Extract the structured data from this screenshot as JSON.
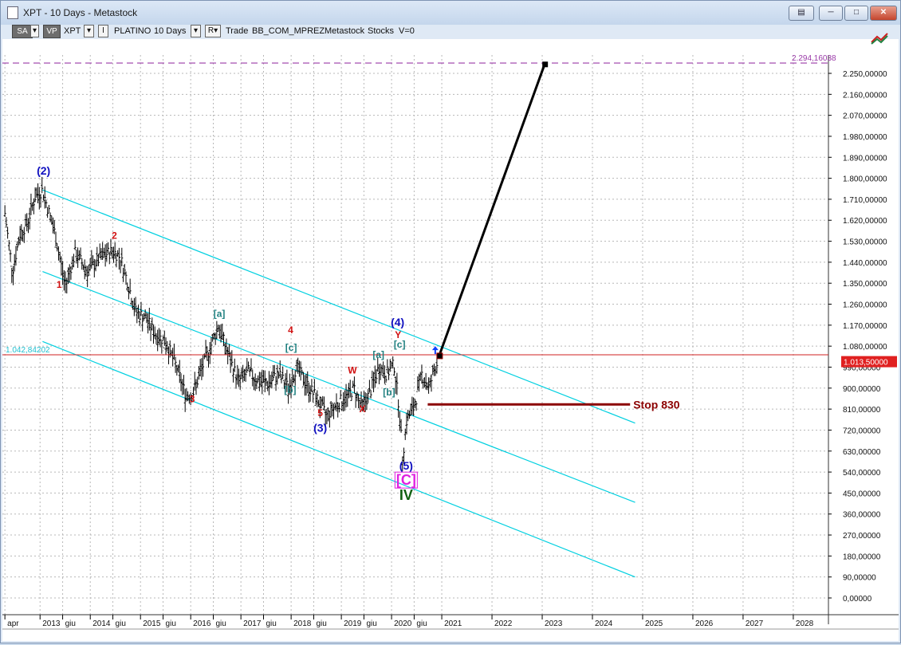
{
  "window": {
    "title": "XPT - 10 Days - Metastock",
    "buttons": [
      "restore",
      "minimize",
      "maximize",
      "close"
    ]
  },
  "toolbar": {
    "sa": "SA",
    "vp": "VP",
    "symbol": "XPT",
    "i_btn": "I",
    "name": "PLATINO",
    "period": "10 Days",
    "r_btn": "R▾",
    "trade": "Trade",
    "template": "BB_COM_MPREZ",
    "source": "Metastock",
    "type": "Stocks",
    "v": "V=0"
  },
  "colors": {
    "channel": "#00d0e0",
    "grid": "#b8b8b8",
    "hline": "#d02020",
    "target": "#9a3aa8",
    "stop": "#8b0000",
    "wave_blue": "#1010c0",
    "wave_red": "#d01010",
    "wave_teal": "#208080"
  },
  "chart_data": {
    "type": "ohlc",
    "period": "10 Days",
    "price_axis_labels": [
      "2.250,00000",
      "2.160,00000",
      "2.070,00000",
      "1.980,00000",
      "1.890,00000",
      "1.800,00000",
      "1.710,00000",
      "1.620,00000",
      "1.530,00000",
      "1.440,00000",
      "1.350,00000",
      "1.260,00000",
      "1.170,00000",
      "1.080,00000",
      "990,00000",
      "900,00000",
      "810,00000",
      "720,00000",
      "630,00000",
      "540,00000",
      "450,00000",
      "360,00000",
      "270,00000",
      "180,00000",
      "90,00000",
      "0,00000"
    ],
    "price_axis_values": [
      2250,
      2160,
      2070,
      1980,
      1890,
      1800,
      1710,
      1620,
      1530,
      1440,
      1350,
      1260,
      1170,
      1080,
      990,
      900,
      810,
      720,
      630,
      540,
      450,
      360,
      270,
      180,
      90,
      0
    ],
    "time_labels": [
      {
        "t": 2012.3,
        "label": "apr"
      },
      {
        "t": 2013.0,
        "label": "2013"
      },
      {
        "t": 2013.45,
        "label": "giu"
      },
      {
        "t": 2014.0,
        "label": "2014"
      },
      {
        "t": 2014.45,
        "label": "giu"
      },
      {
        "t": 2015.0,
        "label": "2015"
      },
      {
        "t": 2015.45,
        "label": "giu"
      },
      {
        "t": 2016.0,
        "label": "2016"
      },
      {
        "t": 2016.45,
        "label": "giu"
      },
      {
        "t": 2017.0,
        "label": "2017"
      },
      {
        "t": 2017.45,
        "label": "giu"
      },
      {
        "t": 2018.0,
        "label": "2018"
      },
      {
        "t": 2018.45,
        "label": "giu"
      },
      {
        "t": 2019.0,
        "label": "2019"
      },
      {
        "t": 2019.45,
        "label": "giu"
      },
      {
        "t": 2020.0,
        "label": "2020"
      },
      {
        "t": 2020.45,
        "label": "giu"
      },
      {
        "t": 2021.0,
        "label": "2021"
      },
      {
        "t": 2022.0,
        "label": "2022"
      },
      {
        "t": 2023.0,
        "label": "2023"
      },
      {
        "t": 2024.0,
        "label": "2024"
      },
      {
        "t": 2025.0,
        "label": "2025"
      },
      {
        "t": 2026.0,
        "label": "2026"
      },
      {
        "t": 2027.0,
        "label": "2027"
      },
      {
        "t": 2028.0,
        "label": "2028"
      }
    ],
    "price_path": [
      [
        2012.3,
        1650
      ],
      [
        2012.45,
        1400
      ],
      [
        2012.6,
        1560
      ],
      [
        2012.75,
        1610
      ],
      [
        2012.9,
        1720
      ],
      [
        2013.05,
        1750
      ],
      [
        2013.3,
        1560
      ],
      [
        2013.5,
        1340
      ],
      [
        2013.7,
        1480
      ],
      [
        2013.95,
        1400
      ],
      [
        2014.2,
        1460
      ],
      [
        2014.45,
        1490
      ],
      [
        2014.6,
        1460
      ],
      [
        2014.75,
        1350
      ],
      [
        2014.9,
        1230
      ],
      [
        2015.1,
        1200
      ],
      [
        2015.3,
        1130
      ],
      [
        2015.5,
        1100
      ],
      [
        2015.7,
        1000
      ],
      [
        2015.9,
        870
      ],
      [
        2016.05,
        880
      ],
      [
        2016.25,
        1000
      ],
      [
        2016.4,
        1080
      ],
      [
        2016.55,
        1170
      ],
      [
        2016.75,
        1040
      ],
      [
        2016.95,
        930
      ],
      [
        2017.15,
        970
      ],
      [
        2017.35,
        930
      ],
      [
        2017.55,
        920
      ],
      [
        2017.75,
        960
      ],
      [
        2017.95,
        900
      ],
      [
        2018.1,
        990
      ],
      [
        2018.3,
        920
      ],
      [
        2018.5,
        860
      ],
      [
        2018.7,
        780
      ],
      [
        2018.9,
        830
      ],
      [
        2019.1,
        860
      ],
      [
        2019.25,
        900
      ],
      [
        2019.4,
        820
      ],
      [
        2019.55,
        870
      ],
      [
        2019.75,
        990
      ],
      [
        2019.9,
        960
      ],
      [
        2020.05,
        1000
      ],
      [
        2020.15,
        820
      ],
      [
        2020.22,
        600
      ],
      [
        2020.3,
        760
      ],
      [
        2020.45,
        820
      ],
      [
        2020.6,
        960
      ],
      [
        2020.75,
        900
      ],
      [
        2020.85,
        980
      ],
      [
        2020.92,
        1013
      ]
    ],
    "last_price": 1013.5,
    "last_price_label": "1.013,50000",
    "horizontal_level": 1042.84202,
    "horizontal_level_label": "1.042,84202",
    "target_level": 2294.16038,
    "target_label": "2.294,16038",
    "projection": [
      [
        2020.95,
        1040
      ],
      [
        2023.05,
        2290
      ]
    ],
    "stop": {
      "level": 830,
      "from": 2020.72,
      "to": 2024.75,
      "label": "Stop 830"
    },
    "channels": [
      [
        [
          2013.05,
          1750
        ],
        [
          2024.85,
          750
        ]
      ],
      [
        [
          2013.05,
          1400
        ],
        [
          2024.85,
          410
        ]
      ],
      [
        [
          2013.05,
          1100
        ],
        [
          2024.85,
          90
        ]
      ]
    ],
    "annotations": [
      {
        "t": 2013.07,
        "p": 1815,
        "text": "(2)",
        "color": "#1010c0",
        "size": 14
      },
      {
        "t": 2013.38,
        "p": 1330,
        "text": "1",
        "color": "#d01010",
        "size": 12
      },
      {
        "t": 2014.48,
        "p": 1540,
        "text": "2",
        "color": "#d01010",
        "size": 12
      },
      {
        "t": 2016.03,
        "p": 840,
        "text": "3",
        "color": "#d01010",
        "size": 12
      },
      {
        "t": 2016.57,
        "p": 1205,
        "text": "[a]",
        "color": "#208080",
        "size": 12
      },
      {
        "t": 2017.99,
        "p": 1135,
        "text": "4",
        "color": "#d01010",
        "size": 12
      },
      {
        "t": 2018.0,
        "p": 1060,
        "text": "[c]",
        "color": "#208080",
        "size": 12
      },
      {
        "t": 2017.98,
        "p": 878,
        "text": "[b]",
        "color": "#208080",
        "size": 12
      },
      {
        "t": 2018.58,
        "p": 780,
        "text": "5",
        "color": "#d01010",
        "size": 12
      },
      {
        "t": 2018.58,
        "p": 713,
        "text": "(3)",
        "color": "#1010c0",
        "size": 14
      },
      {
        "t": 2019.22,
        "p": 963,
        "text": "W",
        "color": "#d01010",
        "size": 12
      },
      {
        "t": 2019.42,
        "p": 797,
        "text": "X",
        "color": "#d01010",
        "size": 12
      },
      {
        "t": 2019.74,
        "p": 1030,
        "text": "[a]",
        "color": "#208080",
        "size": 12
      },
      {
        "t": 2019.95,
        "p": 869,
        "text": "[b]",
        "color": "#208080",
        "size": 12
      },
      {
        "t": 2020.12,
        "p": 1166,
        "text": "(4)",
        "color": "#1010c0",
        "size": 14
      },
      {
        "t": 2020.13,
        "p": 1115,
        "text": "Y",
        "color": "#d01010",
        "size": 12
      },
      {
        "t": 2020.16,
        "p": 1073,
        "text": "[c]",
        "color": "#208080",
        "size": 12
      },
      {
        "t": 2020.29,
        "p": 550,
        "text": "(5)",
        "color": "#1010c0",
        "size": 14
      },
      {
        "t": 2020.29,
        "p": 485,
        "text": "[C]",
        "color": "#e020e0",
        "size": 18
      },
      {
        "t": 2020.29,
        "p": 420,
        "text": "IV",
        "color": "#106010",
        "size": 18
      }
    ]
  }
}
